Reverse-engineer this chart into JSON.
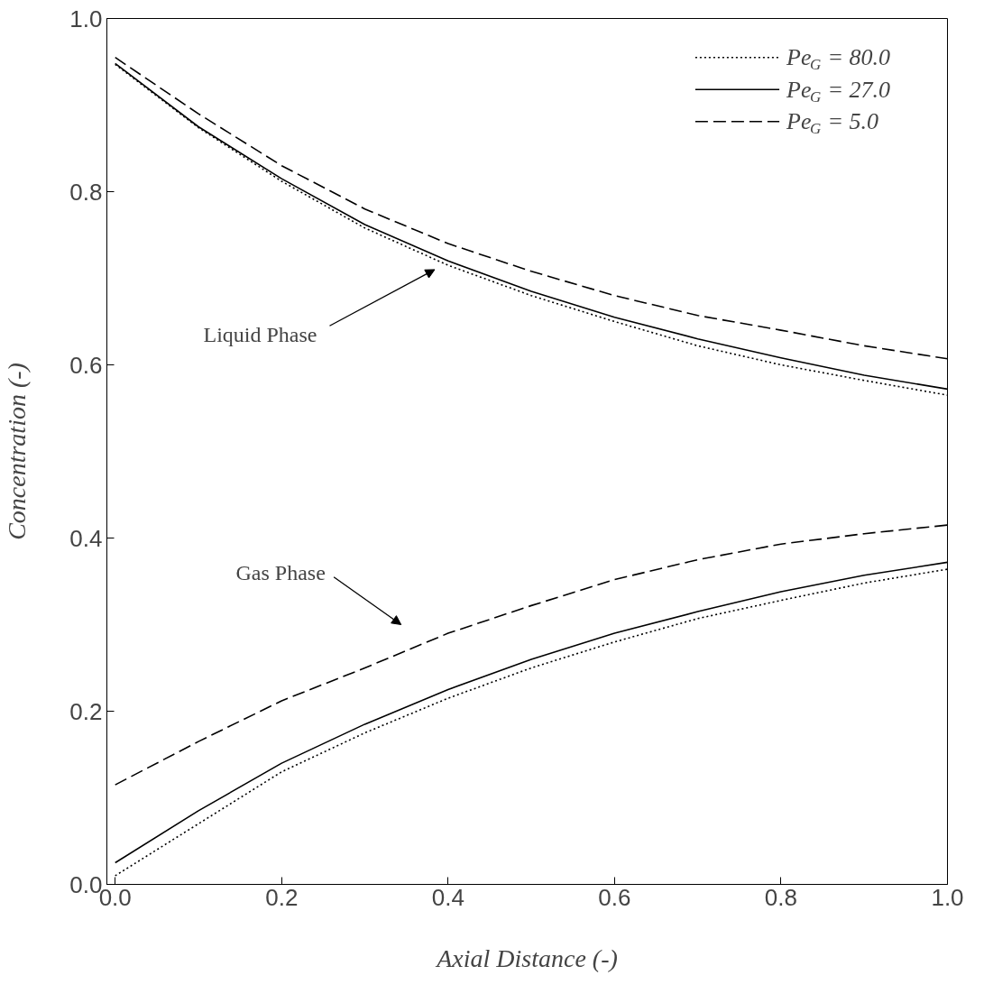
{
  "chart_data": {
    "type": "line",
    "xlabel": "Axial Distance (-)",
    "ylabel": "Concentration (-)",
    "x": [
      0,
      0.1,
      0.2,
      0.3,
      0.4,
      0.5,
      0.6,
      0.7,
      0.8,
      0.9,
      1.0
    ],
    "xlim": [
      -0.01,
      1.0
    ],
    "ylim": [
      0,
      1
    ],
    "xticks": [
      {
        "value": 0,
        "label": "0.0"
      },
      0.2,
      0.4,
      0.6,
      0.8,
      {
        "value": 1,
        "label": "1.0"
      }
    ],
    "yticks": [
      {
        "value": 0,
        "label": "0.0"
      },
      0.2,
      0.4,
      0.6,
      0.8,
      {
        "value": 1,
        "label": "1.0"
      }
    ],
    "grid": false,
    "legend": "top right",
    "marker": "none",
    "series": [
      {
        "name": "Pe$_{G}$ = 80.0",
        "color": "#000000",
        "line_style": "dotted",
        "values": [
          0.947,
          0.874,
          0.812,
          0.758,
          0.715,
          0.68,
          0.65,
          0.622,
          0.6,
          0.582,
          0.565
        ]
      },
      {
        "name": "Pe$_{G}$ = 27.0",
        "color": "#000000",
        "line_style": "solid",
        "values": [
          0.948,
          0.875,
          0.815,
          0.762,
          0.72,
          0.685,
          0.655,
          0.63,
          0.608,
          0.588,
          0.572
        ]
      },
      {
        "name": "Pe$_{G}$ = 5.0",
        "color": "#000000",
        "line_style": "dashed",
        "values": [
          0.955,
          0.89,
          0.83,
          0.78,
          0.74,
          0.708,
          0.68,
          0.657,
          0.64,
          0.622,
          0.607
        ]
      },
      {
        "color": "#000000",
        "line_style": "dotted",
        "values": [
          0.01,
          0.07,
          0.13,
          0.175,
          0.215,
          0.25,
          0.28,
          0.307,
          0.328,
          0.348,
          0.364
        ]
      },
      {
        "color": "#000000",
        "line_style": "solid",
        "values": [
          0.025,
          0.085,
          0.14,
          0.185,
          0.225,
          0.26,
          0.29,
          0.315,
          0.338,
          0.357,
          0.372
        ]
      },
      {
        "color": "#000000",
        "line_style": "dashed",
        "values": [
          0.115,
          0.165,
          0.212,
          0.25,
          0.29,
          0.322,
          0.352,
          0.375,
          0.393,
          0.405,
          0.415
        ]
      }
    ],
    "annotations": [
      "Liquid Phase",
      "Gas Phase"
    ]
  }
}
